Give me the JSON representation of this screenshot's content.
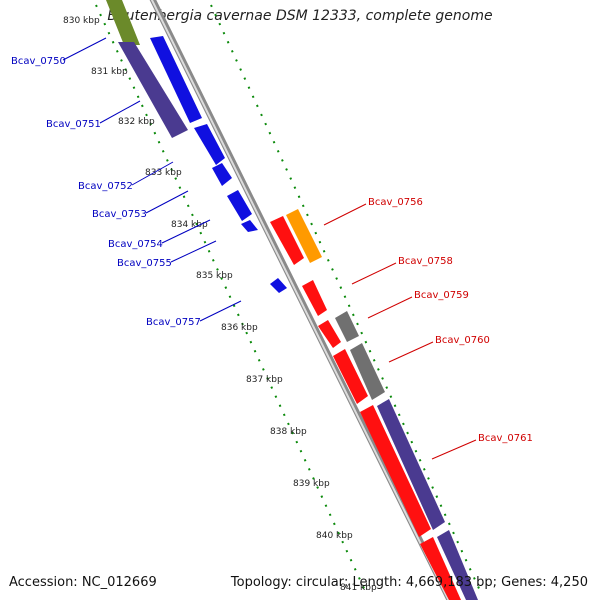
{
  "title": "Beutenbergia cavernae DSM 12333, complete genome",
  "footer": {
    "accession": "Accession: NC_012669",
    "summary": "Topology: circular; Length: 4,669,183 bp; Genes: 4,250"
  },
  "colors": {
    "left_gene": "#1010e0",
    "right_gene": "#ff1010",
    "backbone": "#8a8a8a",
    "orange": "#ff9a00",
    "purple": "#4a3a90",
    "olive": "#6b8a2a",
    "gray_gene": "#707070",
    "tick": "#0b8a0b"
  },
  "kbp_ticks": [
    "830 kbp",
    "831 kbp",
    "832 kbp",
    "833 kbp",
    "834 kbp",
    "835 kbp",
    "836 kbp",
    "837 kbp",
    "838 kbp",
    "839 kbp",
    "840 kbp",
    "841 kbp"
  ],
  "left_genes": [
    "Bcav_0750",
    "Bcav_0751",
    "Bcav_0752",
    "Bcav_0753",
    "Bcav_0754",
    "Bcav_0755",
    "Bcav_0757"
  ],
  "right_genes": [
    "Bcav_0756",
    "Bcav_0758",
    "Bcav_0759",
    "Bcav_0760",
    "Bcav_0761"
  ]
}
